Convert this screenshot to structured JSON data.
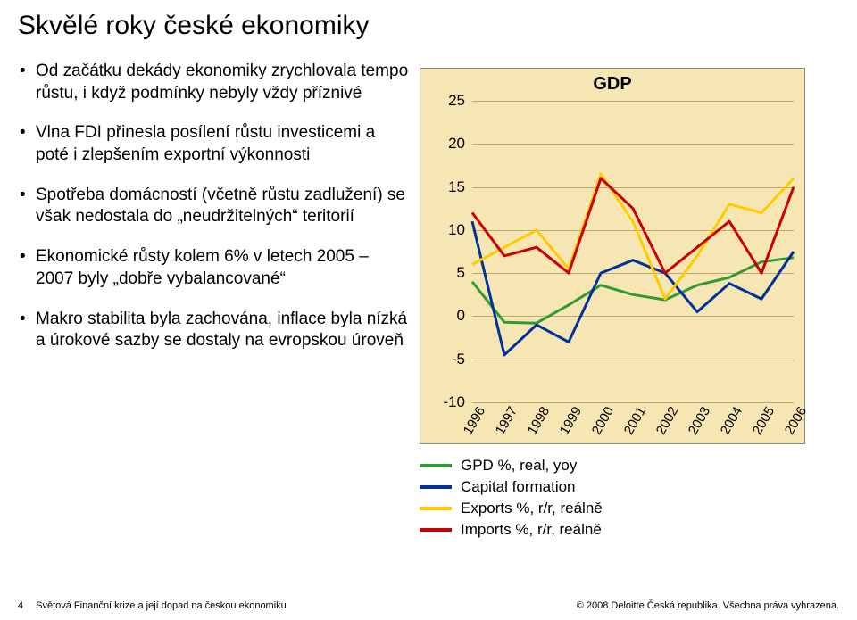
{
  "title": "Skvělé roky české ekonomiky",
  "bullets": [
    "Od začátku dekády ekonomiky zrychlovala tempo růstu, i když podmínky nebyly vždy příznivé",
    "Vlna FDI přinesla posílení růstu investicemi a poté i zlepšením exportní výkonnosti",
    "Spotřeba domácností (včetně růstu zadlužení) se však nedostala do „neudržitelných“ teritorií",
    "Ekonomické růsty kolem 6% v letech 2005 – 2007 byly „dobře vybalancované“",
    "Makro stabilita byla zachována, inflace byla nízká a úrokové sazby se dostaly na evropskou úroveň"
  ],
  "chart": {
    "title": "GDP",
    "background_color": "#f6e6b4",
    "grid_color": "#bba96e",
    "ylim": [
      -10,
      25
    ],
    "yticks": [
      -10,
      -5,
      0,
      5,
      10,
      15,
      20,
      25
    ],
    "categories": [
      "1996",
      "1997",
      "1998",
      "1999",
      "2000",
      "2001",
      "2002",
      "2003",
      "2004",
      "2005",
      "2006"
    ],
    "line_width": 3,
    "series": [
      {
        "name": "GPD %, real, yoy",
        "color": "#339933",
        "data": [
          4.0,
          -0.7,
          -0.8,
          1.3,
          3.6,
          2.5,
          1.9,
          3.6,
          4.5,
          6.3,
          6.8
        ]
      },
      {
        "name": "Capital formation",
        "color": "#003399",
        "data": [
          11.0,
          -4.5,
          -1.0,
          -3.0,
          5.0,
          6.5,
          5.0,
          0.5,
          3.8,
          2.0,
          7.5
        ]
      },
      {
        "name": "Exports %, r/r, reálně",
        "color": "#ffcc00",
        "data": [
          6.0,
          8.0,
          10.0,
          5.5,
          16.5,
          11.0,
          2.0,
          7.0,
          13.0,
          12.0,
          16.0
        ]
      },
      {
        "name": "Imports %, r/r, reálně",
        "color": "#cc0000",
        "data": [
          12.0,
          7.0,
          8.0,
          5.0,
          16.0,
          12.5,
          5.0,
          8.0,
          11.0,
          5.0,
          15.0
        ]
      }
    ]
  },
  "footer": {
    "page": "4",
    "left": "Světová Finanční krize a její dopad na českou ekonomiku",
    "right": "© 2008 Deloitte Česká republika. Všechna práva vyhrazena."
  }
}
